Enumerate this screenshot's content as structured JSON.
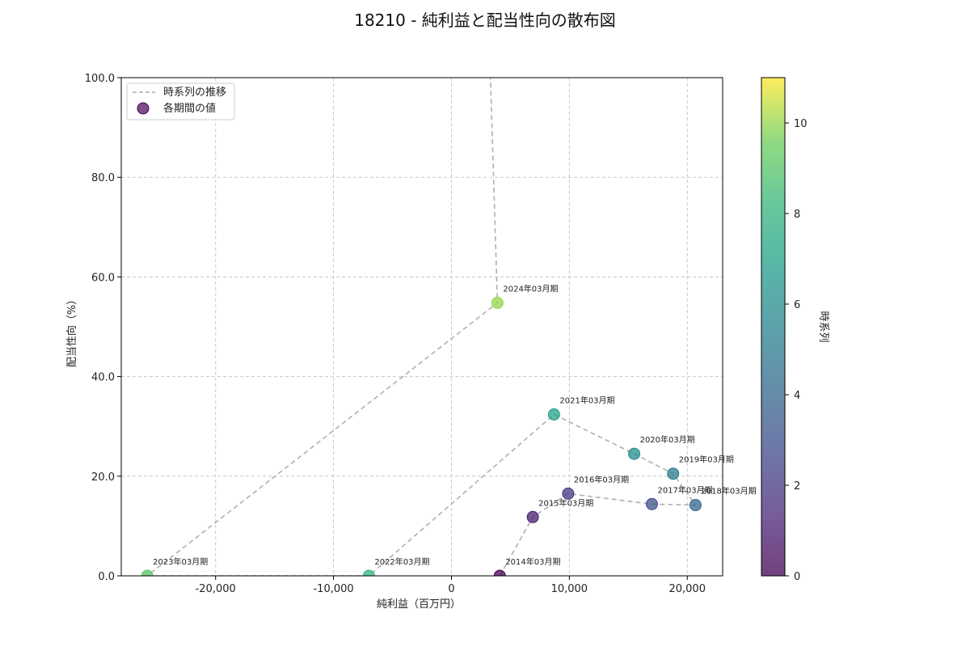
{
  "chart_data": {
    "type": "scatter",
    "title": "18210 - 純利益と配当性向の散布図",
    "xlabel": "純利益（百万円）",
    "ylabel": "配当性向（%）",
    "xlim": [
      -28000,
      23000
    ],
    "ylim": [
      0,
      100
    ],
    "x_ticks": [
      -20000,
      -10000,
      0,
      10000,
      20000
    ],
    "x_tick_labels": [
      "-20,000",
      "-10,000",
      "0",
      "10,000",
      "20,000"
    ],
    "y_ticks": [
      0,
      20,
      40,
      60,
      80,
      100
    ],
    "y_tick_labels": [
      "0.0",
      "20.0",
      "40.0",
      "60.0",
      "80.0",
      "100.0"
    ],
    "grid": true,
    "legend_position": "top-left",
    "legend": {
      "line": "時系列の推移",
      "points": "各期間の値"
    },
    "colorbar": {
      "label": "時系列",
      "range": [
        0,
        11
      ],
      "ticks": [
        0,
        2,
        4,
        6,
        8,
        10
      ],
      "tick_labels": [
        "0",
        "2",
        "4",
        "6",
        "8",
        "10"
      ],
      "colormap": "viridis"
    },
    "points": [
      {
        "period": "2014年03月期",
        "x": 4100,
        "y": 0.0,
        "t": 0
      },
      {
        "period": "2015年03月期",
        "x": 6900,
        "y": 11.8,
        "t": 1
      },
      {
        "period": "2016年03月期",
        "x": 9900,
        "y": 16.5,
        "t": 2
      },
      {
        "period": "2017年03月期",
        "x": 17000,
        "y": 14.4,
        "t": 3
      },
      {
        "period": "2018年03月期",
        "x": 20700,
        "y": 14.2,
        "t": 4
      },
      {
        "period": "2019年03月期",
        "x": 18800,
        "y": 20.5,
        "t": 5
      },
      {
        "period": "2020年03月期",
        "x": 15500,
        "y": 24.5,
        "t": 6
      },
      {
        "period": "2021年03月期",
        "x": 8700,
        "y": 32.4,
        "t": 7
      },
      {
        "period": "2022年03月期",
        "x": -7000,
        "y": 0.0,
        "t": 8
      },
      {
        "period": "2023年03月期",
        "x": -25800,
        "y": 0.0,
        "t": 9
      },
      {
        "period": "2024年03月期",
        "x": 3900,
        "y": 54.8,
        "t": 10
      },
      {
        "period": "",
        "x": 3200,
        "y": 108,
        "t": 11
      }
    ]
  }
}
